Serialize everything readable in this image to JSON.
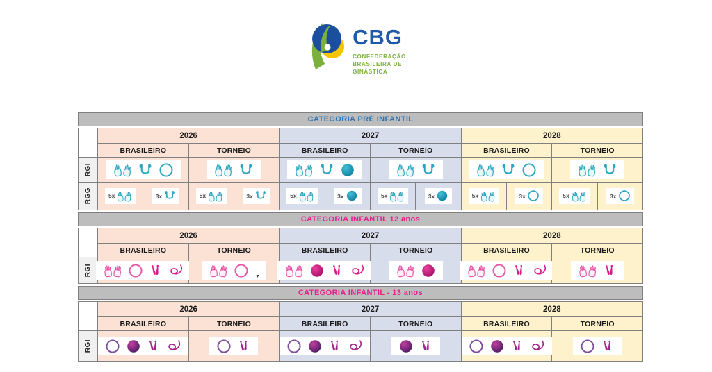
{
  "logo": {
    "acronym": "CBG",
    "org_lines": [
      "CONFEDERAÇÃO",
      "BRASILEIRA DE",
      "GINÁSTICA"
    ],
    "acronym_color": "#1E5AA8",
    "org_color": "#7CB03E",
    "mark_colors": {
      "circle": "#1C4E9E",
      "crescent": "#F5C400",
      "figure": "#7CB03E",
      "dot": "#FFFFFF"
    }
  },
  "columns": {
    "years": [
      {
        "label": "2026",
        "color": "#FBE2D5"
      },
      {
        "label": "2027",
        "color": "#D8DDEB"
      },
      {
        "label": "2028",
        "color": "#FEF2CC"
      }
    ],
    "sub_labels": [
      "BRASILEIRO",
      "TORNEIO"
    ]
  },
  "styles": {
    "title_bar_bg": "#BDBDBD",
    "label_col_bg": "#F0F0F0",
    "border_color": "#808080"
  },
  "tables": [
    {
      "title": "CATEGORIA PRÉ INFANTIL",
      "title_color": "#2E74B5",
      "icon_colors": {
        "stroke": "#2CA6BE",
        "fill": "#E9F7FA",
        "solid": "#2CA6BE",
        "ball_light": "#41C0D6",
        "ball_dark": "#0E7C9E"
      },
      "rows": [
        {
          "label": "RGI",
          "type": "single",
          "cells": [
            {
              "icons": [
                "hands",
                "rope",
                "hoop"
              ]
            },
            {
              "icons": [
                "hands",
                "rope"
              ]
            },
            {
              "icons": [
                "hands",
                "rope",
                "ball"
              ]
            },
            {
              "icons": [
                "hands",
                "rope"
              ]
            },
            {
              "icons": [
                "hands",
                "rope",
                "hoop"
              ]
            },
            {
              "icons": [
                "hands",
                "rope"
              ]
            }
          ]
        },
        {
          "label": "RGG",
          "type": "split",
          "cells": [
            {
              "boxes": [
                {
                  "mult": "5x",
                  "icon": "hands"
                },
                {
                  "mult": "3x",
                  "icon": "rope"
                }
              ]
            },
            {
              "boxes": [
                {
                  "mult": "5x",
                  "icon": "hands"
                },
                {
                  "mult": "3x",
                  "icon": "rope"
                }
              ]
            },
            {
              "boxes": [
                {
                  "mult": "5x",
                  "icon": "hands"
                },
                {
                  "mult": "3x",
                  "icon": "ball"
                }
              ]
            },
            {
              "boxes": [
                {
                  "mult": "5x",
                  "icon": "hands"
                },
                {
                  "mult": "3x",
                  "icon": "ball"
                }
              ]
            },
            {
              "boxes": [
                {
                  "mult": "5x",
                  "icon": "hands"
                },
                {
                  "mult": "3x",
                  "icon": "hoop"
                }
              ]
            },
            {
              "boxes": [
                {
                  "mult": "5x",
                  "icon": "hands"
                },
                {
                  "mult": "3x",
                  "icon": "hoop"
                }
              ]
            }
          ]
        }
      ]
    },
    {
      "title": "CATEGORIA INFANTIL 12 anos",
      "title_color": "#EA1D8D",
      "icon_colors": {
        "stroke": "#E558A8",
        "fill": "#FDF0F8",
        "solid": "#D81B8C",
        "ball_light": "#ED3F9E",
        "ball_dark": "#9E0F62"
      },
      "rows": [
        {
          "label": "RGI",
          "type": "single",
          "cells": [
            {
              "icons": [
                "hands",
                "hoop",
                "clubs",
                "ribbon"
              ]
            },
            {
              "icons": [
                "hands",
                "hoop"
              ],
              "suffix": "z"
            },
            {
              "icons": [
                "hands",
                "ball",
                "clubs",
                "ribbon"
              ]
            },
            {
              "icons": [
                "hands",
                "ball"
              ]
            },
            {
              "icons": [
                "hands",
                "hoop",
                "clubs",
                "ribbon"
              ]
            },
            {
              "icons": [
                "hands",
                "clubs"
              ]
            }
          ]
        }
      ]
    },
    {
      "title": "CATEGORIA INFANTIL - 13 anos",
      "title_color": "#EA1D8D",
      "icon_colors": {
        "stroke": "#7E4D9B",
        "fill": "#F4EDF8",
        "solid": "#A3268E",
        "ball_light": "#C2409E",
        "ball_dark": "#471B63"
      },
      "rows": [
        {
          "label": "RGI",
          "type": "single",
          "cells": [
            {
              "icons": [
                "hoop",
                "ball",
                "clubs",
                "ribbon"
              ]
            },
            {
              "icons": [
                "hoop",
                "clubs"
              ]
            },
            {
              "icons": [
                "hoop",
                "ball",
                "clubs",
                "ribbon"
              ]
            },
            {
              "icons": [
                "ball",
                "clubs"
              ]
            },
            {
              "icons": [
                "hoop",
                "ball",
                "clubs",
                "ribbon"
              ]
            },
            {
              "icons": [
                "hoop",
                "clubs"
              ]
            }
          ]
        }
      ]
    }
  ]
}
